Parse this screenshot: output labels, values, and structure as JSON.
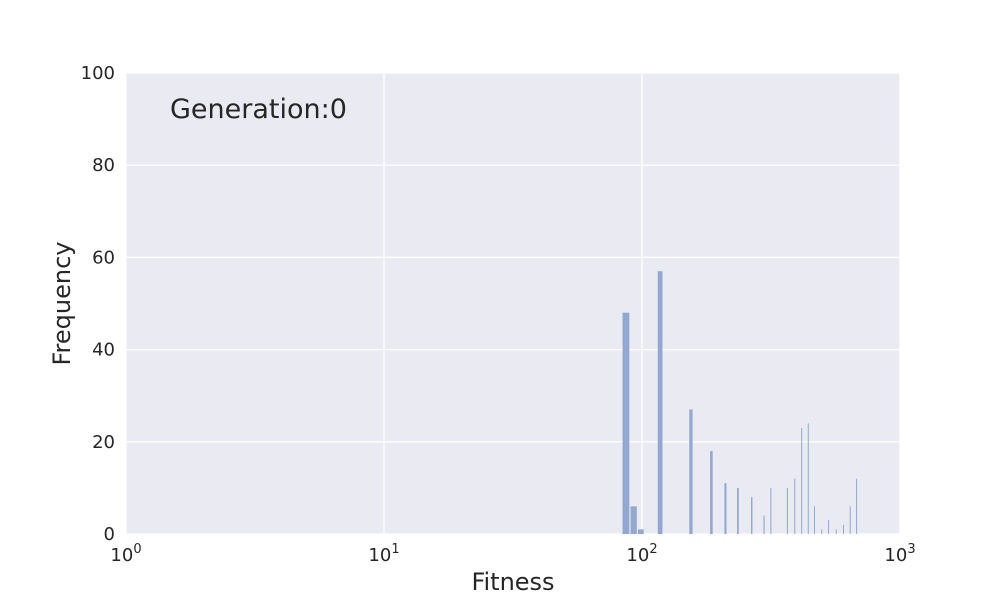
{
  "chart_data": {
    "type": "bar",
    "xscale": "log",
    "xlim": [
      1,
      1000
    ],
    "ylim": [
      0,
      100
    ],
    "grid": true,
    "xlabel": "Fitness",
    "ylabel": "Frequency",
    "annotation": "Generation:0",
    "x_ticks": [
      {
        "value": 1,
        "base": "10",
        "exp": "0"
      },
      {
        "value": 10,
        "base": "10",
        "exp": "1"
      },
      {
        "value": 100,
        "base": "10",
        "exp": "2"
      },
      {
        "value": 1000,
        "base": "10",
        "exp": "3"
      }
    ],
    "y_ticks": [
      0,
      20,
      40,
      60,
      80,
      100
    ],
    "bin_width": 6.2,
    "bars": [
      {
        "x": 86.7,
        "value": 48
      },
      {
        "x": 92.9,
        "value": 6
      },
      {
        "x": 99.0,
        "value": 1
      },
      {
        "x": 117.6,
        "value": 57
      },
      {
        "x": 154.8,
        "value": 27
      },
      {
        "x": 185.8,
        "value": 18
      },
      {
        "x": 210.6,
        "value": 11
      },
      {
        "x": 235.4,
        "value": 10
      },
      {
        "x": 266.3,
        "value": 8
      },
      {
        "x": 297.3,
        "value": 4
      },
      {
        "x": 315.9,
        "value": 10
      },
      {
        "x": 365.5,
        "value": 10
      },
      {
        "x": 390.3,
        "value": 12
      },
      {
        "x": 415.0,
        "value": 23
      },
      {
        "x": 439.8,
        "value": 24
      },
      {
        "x": 464.6,
        "value": 6
      },
      {
        "x": 495.6,
        "value": 1
      },
      {
        "x": 526.6,
        "value": 3
      },
      {
        "x": 563.7,
        "value": 1
      },
      {
        "x": 600.9,
        "value": 2
      },
      {
        "x": 638.1,
        "value": 6
      },
      {
        "x": 675.3,
        "value": 12
      }
    ],
    "colors": {
      "background": "#eaeaf2",
      "grid": "#ffffff",
      "bar": "#92a8d1",
      "text": "#262626"
    }
  }
}
